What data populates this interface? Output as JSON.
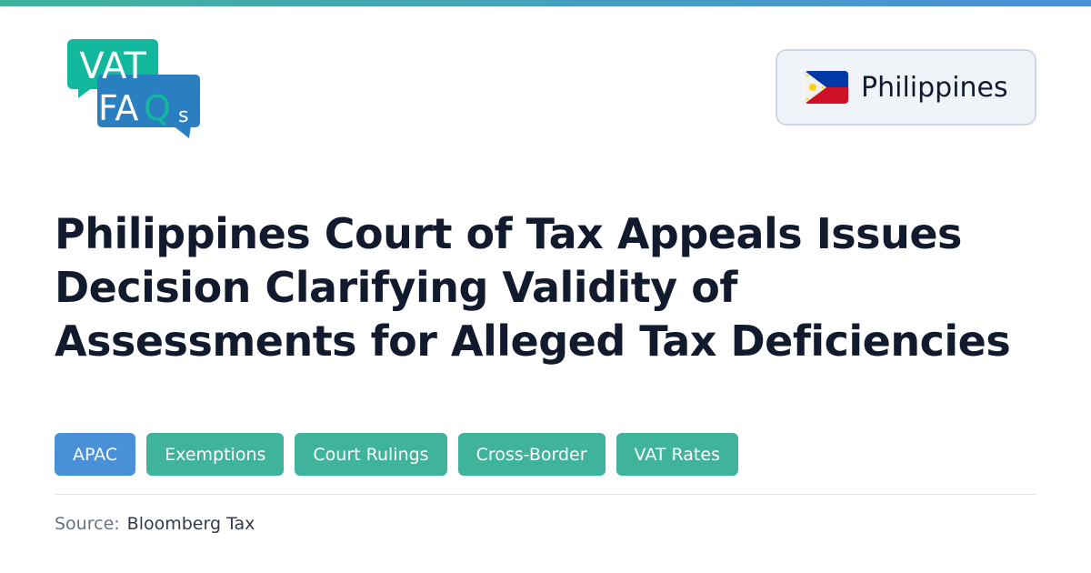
{
  "logo": {
    "line1": "VAT",
    "line2": "FAQs",
    "colors": {
      "green": "#12b89e",
      "blue": "#2a7fc1"
    }
  },
  "country": {
    "name": "Philippines",
    "flag_icon": "philippines-flag-icon"
  },
  "article": {
    "title": "Philippines Court of Tax Appeals Issues Decision Clarifying Validity of Assessments for Alleged Tax Deficiencies"
  },
  "tags": [
    {
      "label": "APAC",
      "color": "#4a90d9"
    },
    {
      "label": "Exemptions",
      "color": "#3fb39c"
    },
    {
      "label": "Court Rulings",
      "color": "#3fb39c"
    },
    {
      "label": "Cross-Border",
      "color": "#3fb39c"
    },
    {
      "label": "VAT Rates",
      "color": "#3fb39c"
    }
  ],
  "source": {
    "label": "Source:",
    "value": "Bloomberg Tax"
  }
}
